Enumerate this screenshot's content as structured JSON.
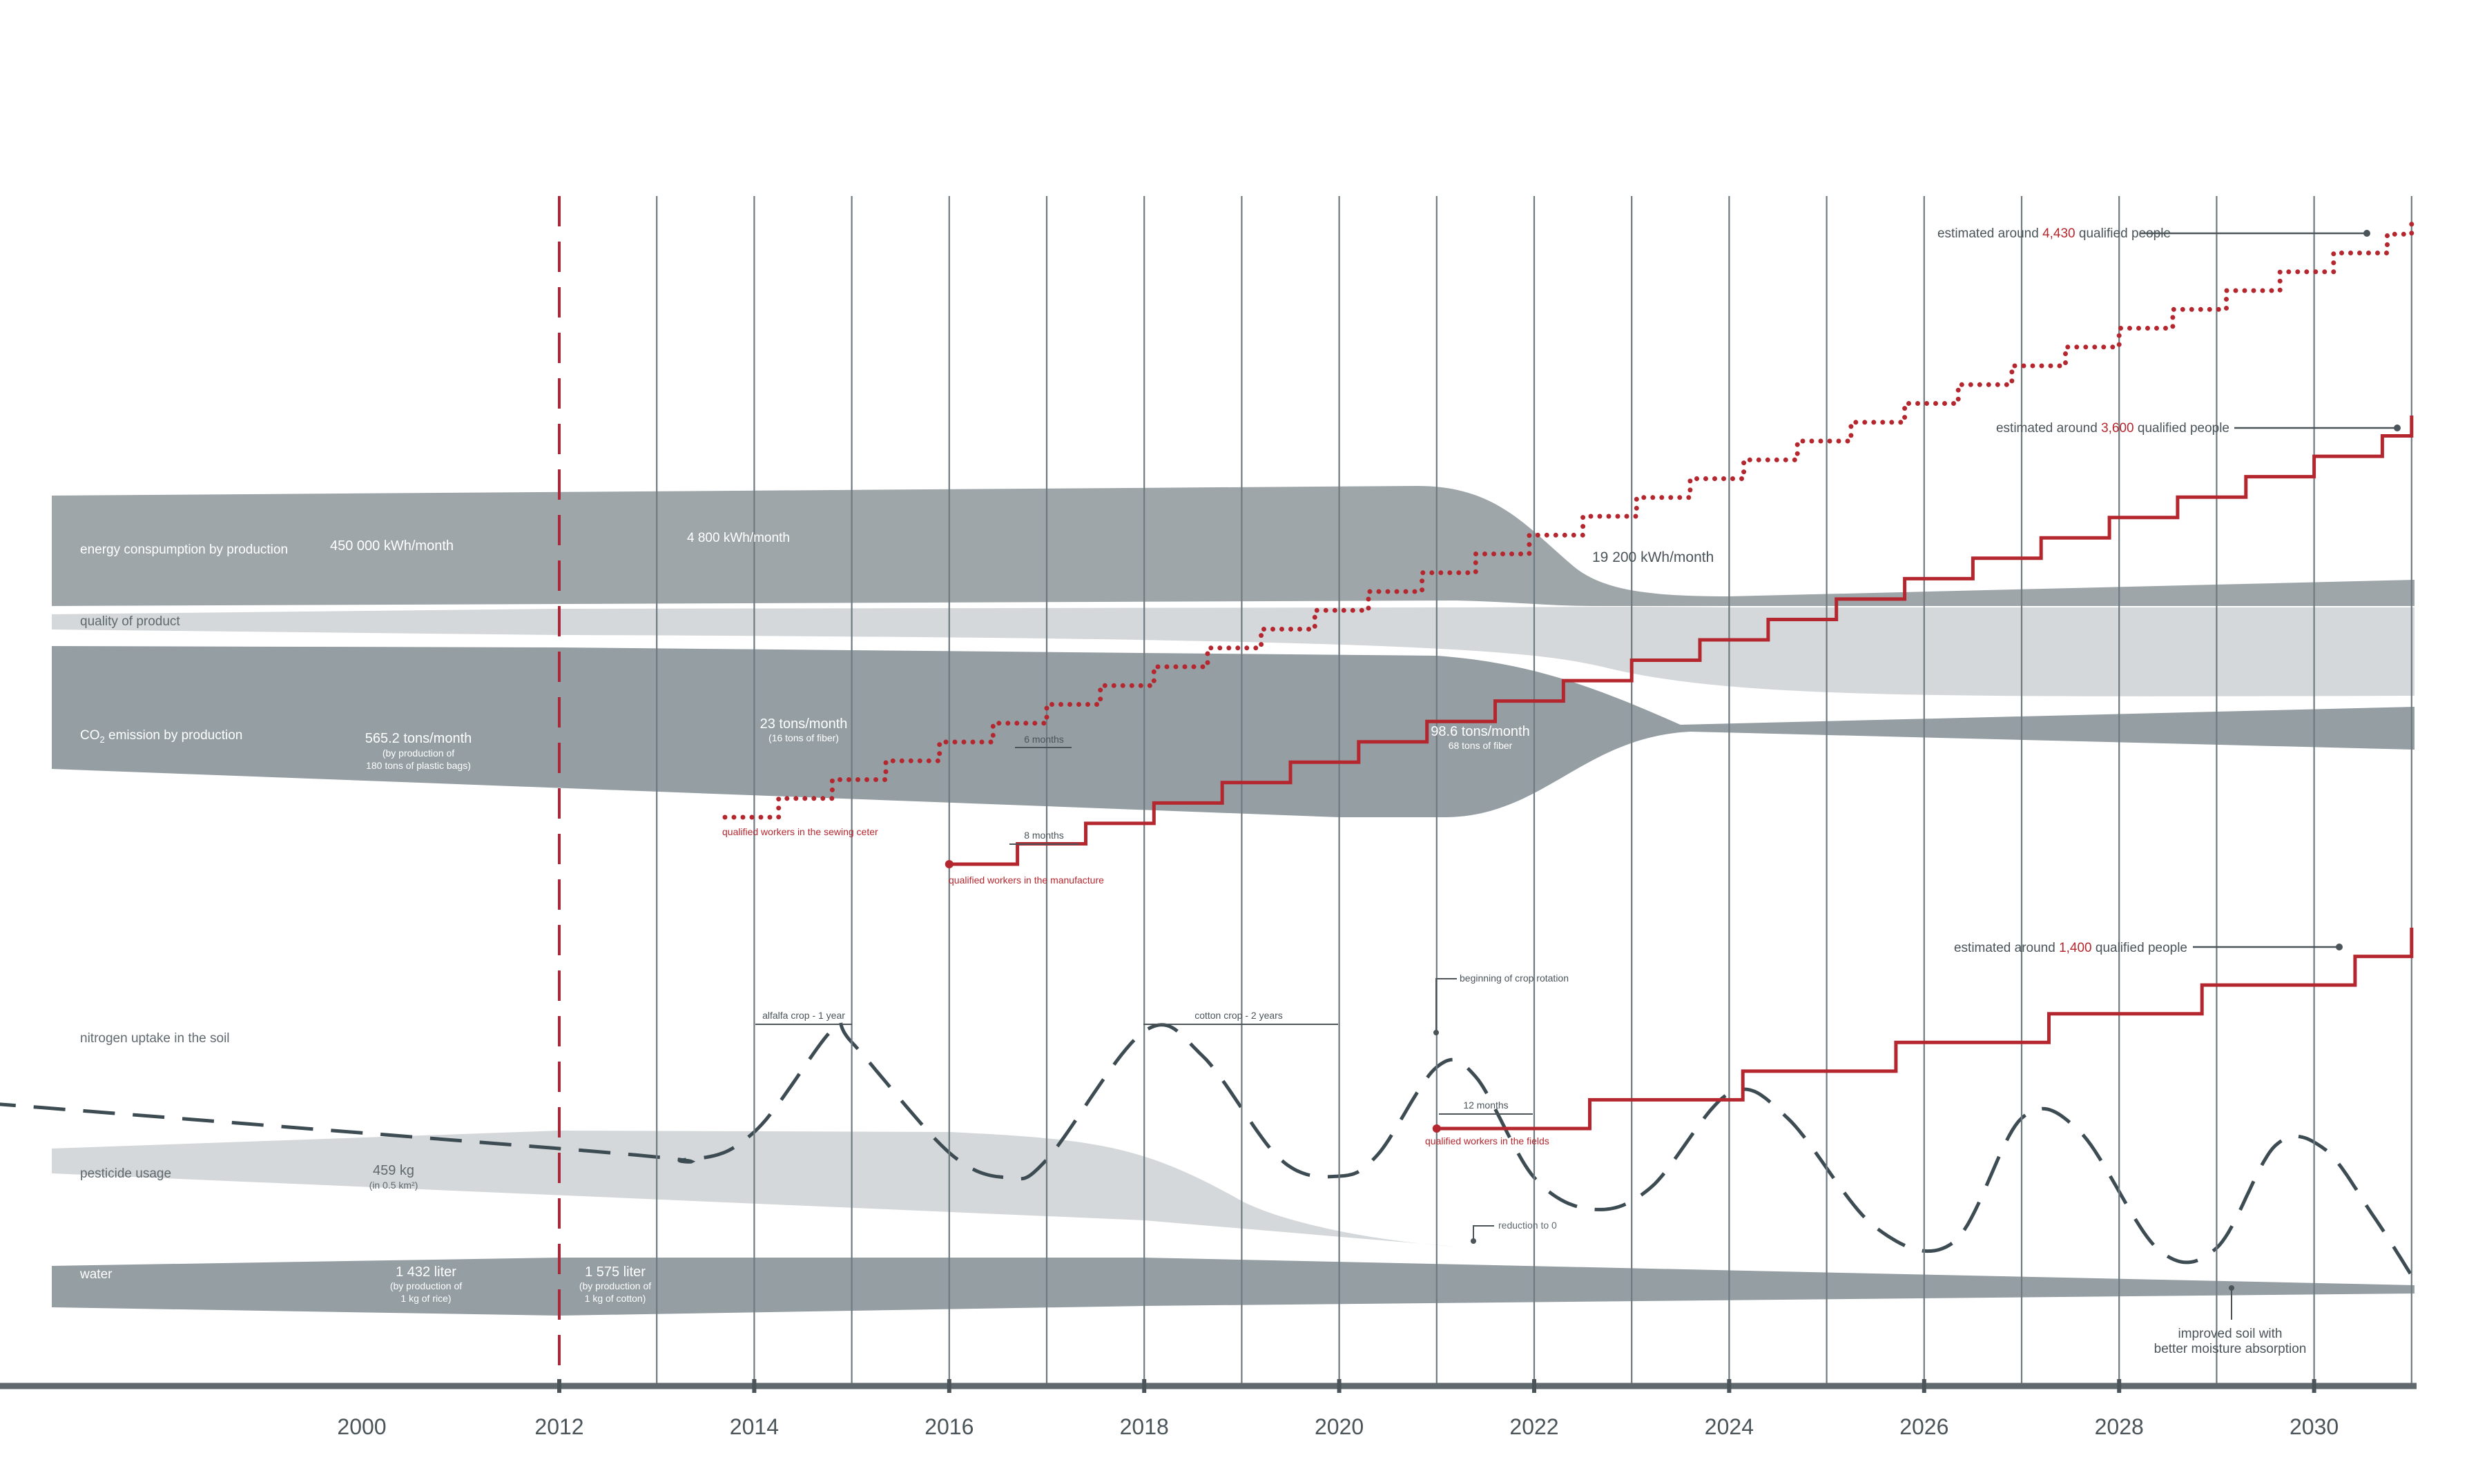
{
  "chart_data": {
    "type": "line",
    "x_axis": {
      "tick_labels": [
        "2000",
        "2012",
        "2014",
        "2016",
        "2018",
        "2020",
        "2022",
        "2024",
        "2026",
        "2028",
        "2030"
      ],
      "xlim": [
        2000,
        2031
      ]
    },
    "bands": {
      "energy": {
        "label": "energy conspumption by production",
        "values": [
          "450 000 kWh/month",
          "4 800 kWh/month",
          "19 200 kWh/month"
        ]
      },
      "quality": {
        "label": "quality of product"
      },
      "co2": {
        "label_main": "CO",
        "label_sub": "2",
        "label_rest": " emission by production",
        "values": [
          {
            "main": "565.2 tons/month",
            "sub1": "(by production of",
            "sub2": "180 tons of plastic bags)"
          },
          {
            "main": "23 tons/month",
            "sub1": "(16 tons of fiber)"
          },
          {
            "main": "98.6 tons/month",
            "sub1": "68 tons of fiber"
          }
        ]
      },
      "nitrogen": {
        "label": "nitrogen uptake in the soil"
      },
      "pesticide": {
        "label": "pesticide usage",
        "value": "459 kg",
        "sub": "(in 0.5 km²)",
        "reduction": "reduction to 0"
      },
      "water": {
        "label": "water",
        "values": [
          {
            "main": "1 432 liter",
            "sub1": "(by production of",
            "sub2": "1 kg of rice)"
          },
          {
            "main": "1 575 liter",
            "sub1": "(by production of",
            "sub2": "1 kg of cotton)"
          }
        ],
        "note1": "improved soil with",
        "note2": "better moisture absorption"
      }
    },
    "annotations": {
      "sewing_duration": "6 months",
      "manufacture_duration": "8 months",
      "fields_duration": "12 months",
      "alfalfa": "alfalfa crop - 1 year",
      "cotton": "cotton crop - 2 years",
      "crop_rotation": "beginning of crop rotation"
    },
    "series": [
      {
        "name": "qualified workers in the sewing ceter",
        "style": "dotted",
        "color": "#b5272f",
        "est_pre": "estimated around ",
        "est_num": "4,430",
        "est_post": " qualified people",
        "start": 2013.7,
        "end": 2031,
        "step_x": 0.55,
        "start_y": 110,
        "end_y": 4430
      },
      {
        "name": "qualified workers in the manufacture",
        "style": "solid",
        "color": "#b5272f",
        "est_pre": "estimated around ",
        "est_num": "3,600",
        "est_post": " qualified people",
        "start": 2016,
        "end": 2031,
        "step_x": 0.7,
        "start_y": 0,
        "end_y": 3600
      },
      {
        "name": "qualified workers in the fields",
        "style": "solid",
        "color": "#b5272f",
        "est_pre": "estimated around ",
        "est_num": "1,400",
        "est_post": " qualified people",
        "start": 2021,
        "end": 2031,
        "step_x": 1.57,
        "start_y": 0,
        "end_y": 1400
      }
    ]
  }
}
